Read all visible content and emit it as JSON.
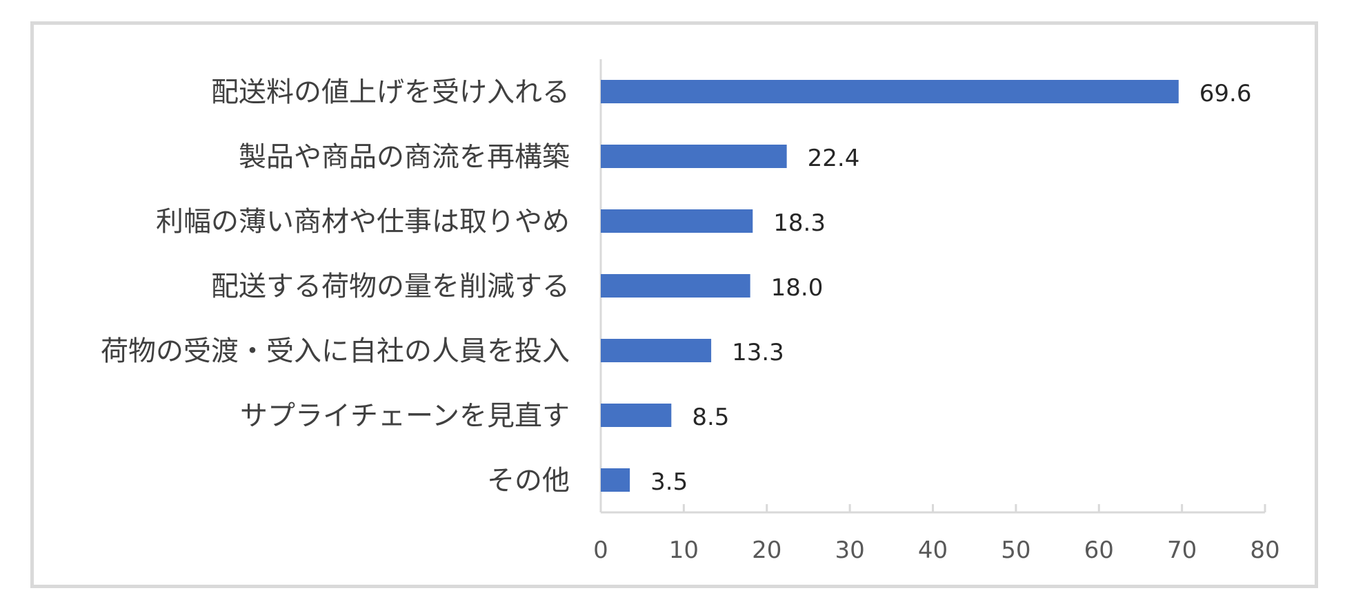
{
  "chart_data": {
    "type": "bar",
    "orientation": "horizontal",
    "categories": [
      "配送料の値上げを受け入れる",
      "製品や商品の商流を再構築",
      "利幅の薄い商材や仕事は取りやめ",
      "配送する荷物の量を削減する",
      "荷物の受渡・受入に自社の人員を投入",
      "サプライチェーンを見直す",
      "その他"
    ],
    "values": [
      69.6,
      22.4,
      18.3,
      18.0,
      13.3,
      8.5,
      3.5
    ],
    "value_labels": [
      "69.6",
      "22.4",
      "18.3",
      "18.0",
      "13.3",
      "8.5",
      "3.5"
    ],
    "xlim": [
      0,
      80
    ],
    "x_ticks": [
      0,
      10,
      20,
      30,
      40,
      50,
      60,
      70,
      80
    ],
    "title": "",
    "xlabel": "",
    "ylabel": "",
    "grid": false,
    "legend": "none",
    "bar_color": "#4472c4",
    "axis_color": "#d9d9d9"
  }
}
